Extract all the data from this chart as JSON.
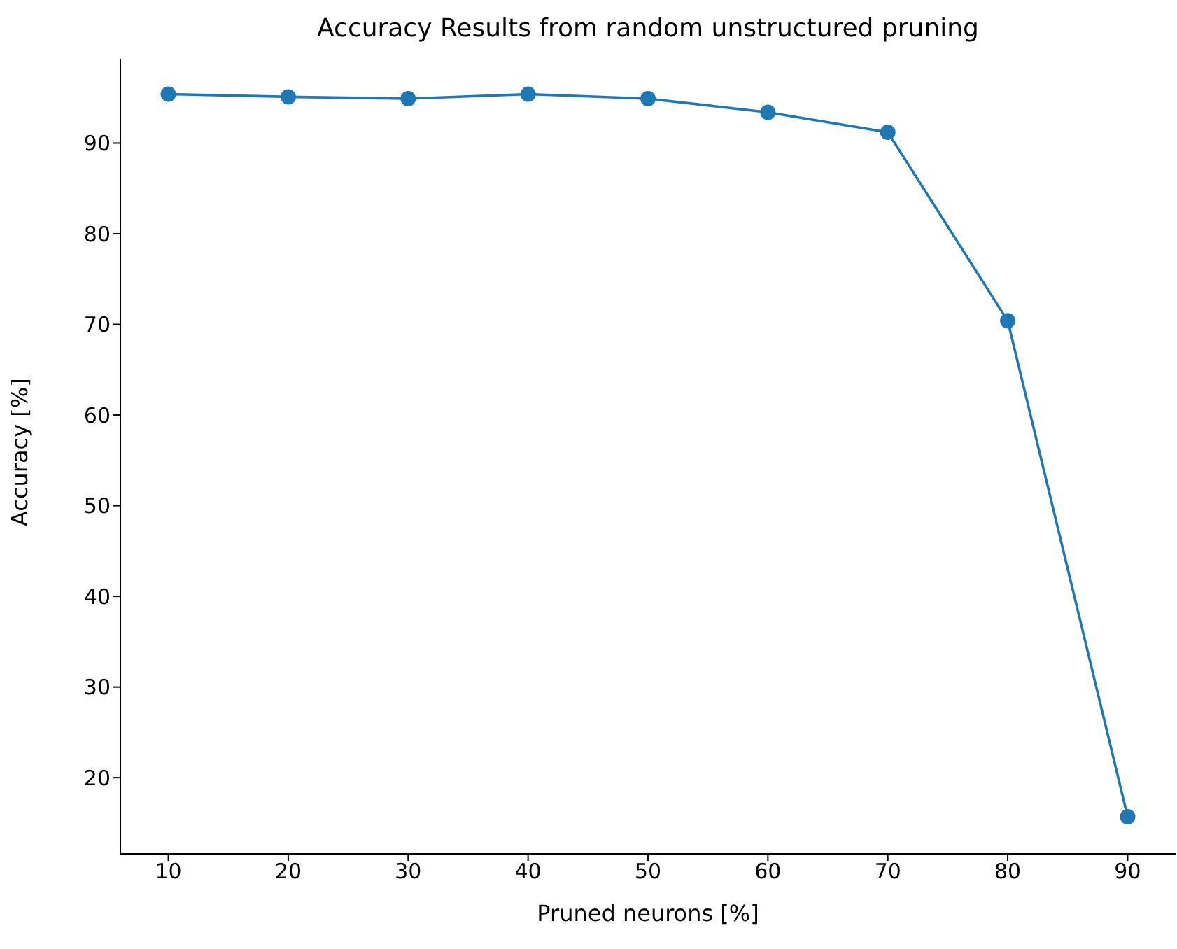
{
  "chart_data": {
    "type": "line",
    "title": "Accuracy Results from random unstructured pruning",
    "xlabel": "Pruned neurons [%]",
    "ylabel": "Accuracy [%]",
    "x": [
      10,
      20,
      30,
      40,
      50,
      60,
      70,
      80,
      90
    ],
    "series": [
      {
        "color": "#1f77b4",
        "values": [
          95.4,
          95.1,
          94.9,
          95.4,
          94.9,
          93.4,
          91.2,
          70.4,
          15.7
        ]
      }
    ],
    "xlim": [
      6,
      94
    ],
    "xticks": [
      10,
      20,
      30,
      40,
      50,
      60,
      70,
      80,
      90
    ],
    "ylim": [
      11.6,
      99.3
    ],
    "yticks": [
      20,
      30,
      40,
      50,
      60,
      70,
      80,
      90
    ],
    "grid": false,
    "legend": false,
    "marker": "circle",
    "line_style": "solid"
  }
}
